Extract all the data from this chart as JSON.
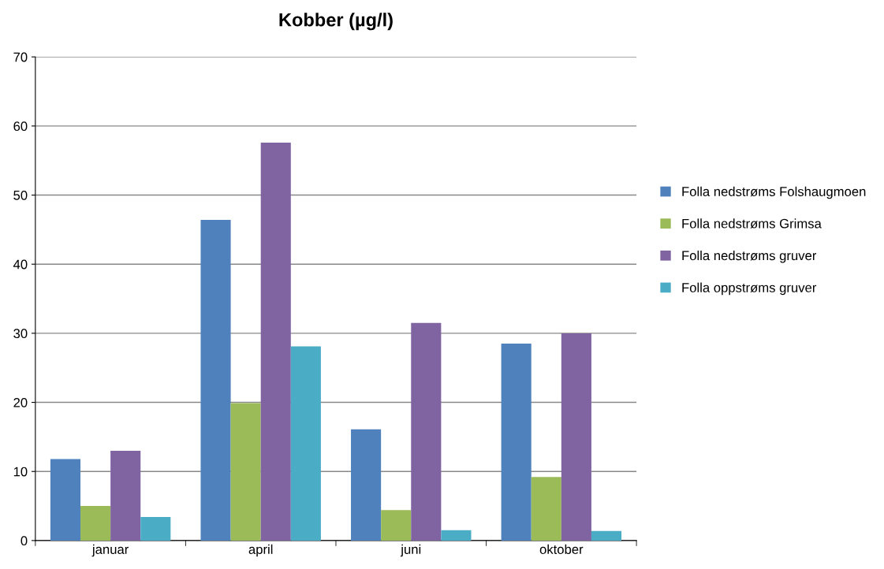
{
  "chart_data": {
    "type": "bar",
    "title": "Kobber (µg/l)",
    "categories": [
      "januar",
      "april",
      "juni",
      "oktober"
    ],
    "series": [
      {
        "name": "Folla nedstrøms Folshaugmoen",
        "color": "#4f81bd",
        "values": [
          11.8,
          46.4,
          16.1,
          28.5
        ]
      },
      {
        "name": "Folla nedstrøms Grimsa",
        "color": "#9bbb59",
        "values": [
          5.0,
          19.9,
          4.4,
          9.2
        ]
      },
      {
        "name": "Folla nedstrøms gruver",
        "color": "#8064a2",
        "values": [
          13.0,
          57.6,
          31.5,
          30.0
        ]
      },
      {
        "name": "Folla oppstrøms gruver",
        "color": "#4bacc6",
        "values": [
          3.4,
          28.1,
          1.5,
          1.4
        ]
      }
    ],
    "ylim": [
      0,
      70
    ],
    "yticks": [
      0,
      10,
      20,
      30,
      40,
      50,
      60,
      70
    ],
    "grid": "y",
    "legend": "right"
  }
}
